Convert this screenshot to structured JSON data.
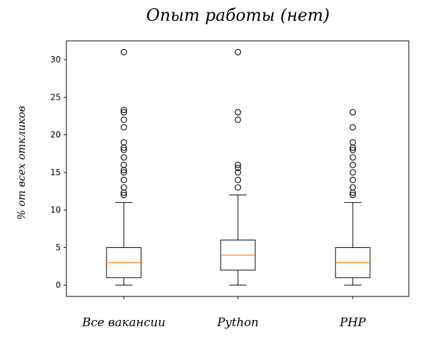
{
  "chart_data": {
    "type": "boxplot",
    "title": "Опыт работы (нет)",
    "xlabel": "",
    "ylabel": "% от всех откликов",
    "ylim": [
      -1.5,
      32.5
    ],
    "yticks": [
      0,
      5,
      10,
      15,
      20,
      25,
      30
    ],
    "categories": [
      "Все вакансии",
      "Python",
      "PHP"
    ],
    "boxes": [
      {
        "name": "Все вакансии",
        "whisker_low": 0,
        "q1": 1,
        "median": 3,
        "q3": 5,
        "whisker_high": 11,
        "outliers": [
          12,
          12.3,
          13,
          14,
          15,
          15.3,
          16,
          17,
          18,
          18.3,
          19,
          21,
          22,
          23,
          23.3,
          31
        ]
      },
      {
        "name": "Python",
        "whisker_low": 0,
        "q1": 2,
        "median": 4,
        "q3": 6,
        "whisker_high": 12,
        "outliers": [
          13,
          14,
          15,
          15.6,
          16,
          22,
          23,
          31
        ]
      },
      {
        "name": "PHP",
        "whisker_low": 0,
        "q1": 1,
        "median": 3,
        "q3": 5,
        "whisker_high": 11,
        "outliers": [
          12,
          12.3,
          13,
          14,
          15,
          16,
          17,
          18,
          18.3,
          19,
          21,
          23
        ]
      }
    ],
    "colors": {
      "box": "#000000",
      "median": "#ff7f0e",
      "outlier": "#000000"
    }
  }
}
